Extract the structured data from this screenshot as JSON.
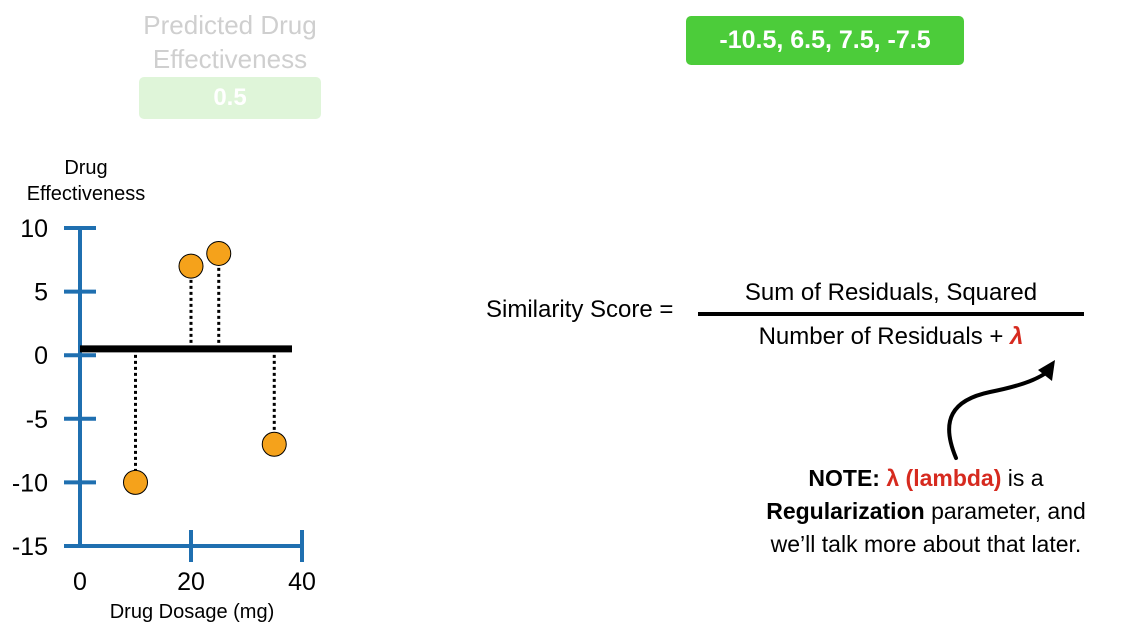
{
  "predicted": {
    "title": "Predicted Drug Effectiveness",
    "value": "0.5"
  },
  "residuals": {
    "value": "-10.5, 6.5, 7.5, -7.5"
  },
  "colors": {
    "axis": "#1f6fb0",
    "point": "#f5a21b",
    "residual_box": "#4ccc3a",
    "faded_box": "#dff5d9",
    "lambda_red": "#d62a1f"
  },
  "chart_data": {
    "type": "scatter",
    "ylabel_line1": "Drug",
    "ylabel_line2": "Effectiveness",
    "xlabel": "Drug Dosage (mg)",
    "xlim": [
      0,
      40
    ],
    "ylim": [
      -15,
      10
    ],
    "xticks": [
      0,
      20,
      40
    ],
    "yticks": [
      10,
      5,
      0,
      -5,
      -10,
      -15
    ],
    "prediction_line": 0.5,
    "points": [
      {
        "x": 10,
        "y": -10
      },
      {
        "x": 20,
        "y": 7
      },
      {
        "x": 25,
        "y": 8
      },
      {
        "x": 35,
        "y": -7
      }
    ]
  },
  "formula": {
    "lhs": "Similarity Score =",
    "numerator": "Sum of Residuals, Squared",
    "denominator": "Number of Residuals +",
    "lambda": "λ"
  },
  "note": {
    "bold_prefix": "NOTE:",
    "lambda_text": "λ (lambda)",
    "line1_rest": "is a",
    "bold_word": "Regularization",
    "line2_rest": "parameter, and",
    "line3": "we’ll talk more about that later."
  }
}
